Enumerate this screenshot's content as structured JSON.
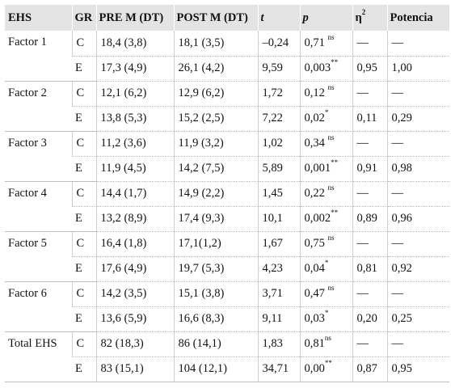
{
  "headers": {
    "ehs": "EHS",
    "gr": "GR",
    "pre": "PRE M (DT)",
    "post": "POST M (DT)",
    "t": "t",
    "p": "p",
    "eta_base": "η",
    "eta_sup": "2",
    "potencia": "Potencia"
  },
  "rows": [
    {
      "factor": "Factor 1",
      "gr": "C",
      "pre": "18,4 (3,8)",
      "post": "18,1 (3,5)",
      "t": "–0,24",
      "p": "0,71",
      "psig": "ns",
      "eta": "—",
      "pot": "—"
    },
    {
      "factor": "",
      "gr": "E",
      "pre": "17,3 (4,9)",
      "post": "26,1 (4,2)",
      "t": "9,59",
      "p": "0,003",
      "psig": "**",
      "eta": "0,95",
      "pot": "1,00"
    },
    {
      "factor": "Factor 2",
      "gr": "C",
      "pre": "12,1 (6,2)",
      "post": "12,9 (6,2)",
      "t": "1,72",
      "p": "0,12",
      "psig": "ns",
      "eta": "—",
      "pot": "—"
    },
    {
      "factor": "",
      "gr": "E",
      "pre": "13,8 (5,3)",
      "post": "15,2 (2,5)",
      "t": "7,22",
      "p": "0,02",
      "psig": "*",
      "eta": "0,11",
      "pot": "0,29"
    },
    {
      "factor": "Factor 3",
      "gr": "C",
      "pre": "11,2 (3,6)",
      "post": "11,9 (3,2)",
      "t": "1,02",
      "p": "0,34",
      "psig": "ns",
      "eta": "—",
      "pot": "—"
    },
    {
      "factor": "",
      "gr": "E",
      "pre": "11,9 (4,5)",
      "post": "14,2 (7,5)",
      "t": "5,89",
      "p": "0,001",
      "psig": "**",
      "eta": "0,91",
      "pot": "0,98"
    },
    {
      "factor": "Factor 4",
      "gr": "C",
      "pre": "14,4 (1,7)",
      "post": "14,9 (2,2)",
      "t": "1,45",
      "p": "0,22",
      "psig": "ns",
      "eta": "—",
      "pot": "—"
    },
    {
      "factor": "",
      "gr": "E",
      "pre": "13,2 (8,9)",
      "post": "17,4 (9,3)",
      "t": "10,1",
      "p": "0,002",
      "psig": "**",
      "eta": "0,89",
      "pot": "0,96"
    },
    {
      "factor": "Factor 5",
      "gr": "C",
      "pre": "16,4 (1,8)",
      "post": "17,1(1,2)",
      "t": "1,67",
      "p": "0,75",
      "psig": "ns",
      "eta": "—",
      "pot": "—"
    },
    {
      "factor": "",
      "gr": "E",
      "pre": "17,6 (4,9)",
      "post": "19,7 (5,3)",
      "t": "4,23",
      "p": "0,04",
      "psig": "*",
      "eta": "0,81",
      "pot": "0,92"
    },
    {
      "factor": "Factor 6",
      "gr": "C",
      "pre": "14,2 (3,5)",
      "post": "15,1 (3,8)",
      "t": "3,71",
      "p": "0,47",
      "psig": "ns",
      "eta": "—",
      "pot": "—"
    },
    {
      "factor": "",
      "gr": "E",
      "pre": "13,6 (5,9)",
      "post": "16,6 (8,3)",
      "t": "9,11",
      "p": "0,03",
      "psig": "*",
      "eta": "0,20",
      "pot": "0,25"
    },
    {
      "factor": "Total EHS",
      "gr": "C",
      "pre": "82 (18,3)",
      "post": "86 (14,1)",
      "t": "1,83",
      "p": "0,81",
      "psig": "ns",
      "eta": "—",
      "pot": "—"
    },
    {
      "factor": "",
      "gr": "E",
      "pre": "83 (15,1)",
      "post": "104 (12,1)",
      "t": "34,71",
      "p": "0,00",
      "psig": "**",
      "eta": "0,87",
      "pot": "0,95"
    }
  ]
}
